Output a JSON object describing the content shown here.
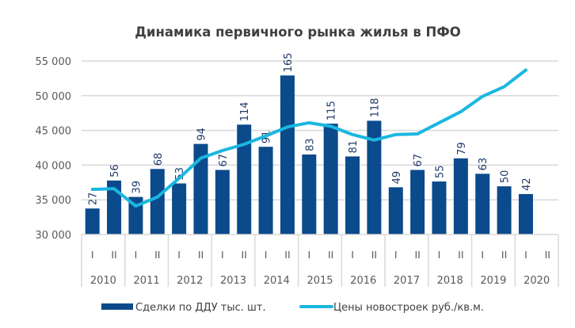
{
  "chart_data": {
    "type": "bar",
    "title": "Динамика первичного рынка жилья в ПФО",
    "xlabel": "",
    "ylabel": "",
    "ylim": [
      30000,
      55000
    ],
    "yticks": [
      "30 000",
      "35 000",
      "40 000",
      "45 000",
      "50 000",
      "55 000"
    ],
    "ytick_values": [
      30000,
      35000,
      40000,
      45000,
      50000,
      55000
    ],
    "secondary_ylim": [
      0,
      180
    ],
    "grid": true,
    "legend_position": "bottom",
    "years": [
      "2010",
      "2011",
      "2012",
      "2013",
      "2014",
      "2015",
      "2016",
      "2017",
      "2018",
      "2019",
      "2020"
    ],
    "half_labels": [
      "I",
      "II"
    ],
    "categories": [
      "2010 I",
      "2010 II",
      "2011 I",
      "2011 II",
      "2012 I",
      "2012 II",
      "2013 I",
      "2013 II",
      "2014 I",
      "2014 II",
      "2015 I",
      "2015 II",
      "2016 I",
      "2016 II",
      "2017 I",
      "2017 II",
      "2018 I",
      "2018 II",
      "2019 I",
      "2019 II",
      "2020 I",
      "2020 II"
    ],
    "series": [
      {
        "name": "Сделки по ДДУ тыс. шт.",
        "type": "bar",
        "axis": "secondary",
        "color": "#0b4a8b",
        "values": [
          27,
          56,
          39,
          68,
          53,
          94,
          67,
          114,
          91,
          165,
          83,
          115,
          81,
          118,
          49,
          67,
          55,
          79,
          63,
          50,
          42,
          null
        ],
        "labels": [
          "27",
          "56",
          "39",
          "68",
          "53",
          "94",
          "67",
          "114",
          "91",
          "165",
          "83",
          "115",
          "81",
          "118",
          "49",
          "67",
          "55",
          "79",
          "63",
          "50",
          "42",
          ""
        ]
      },
      {
        "name": "Цены новостроек руб./кв.м.",
        "type": "line",
        "axis": "primary",
        "color": "#1ab7e0",
        "values": [
          36500,
          36600,
          34100,
          35400,
          38100,
          41000,
          42100,
          43000,
          44200,
          45500,
          46100,
          45600,
          44400,
          43600,
          44400,
          44500,
          46100,
          47700,
          49900,
          51300,
          53700,
          null
        ]
      }
    ]
  },
  "colors": {
    "grid": "#d9d9d9",
    "axis_text": "#595959",
    "title": "#404040",
    "data_label": "#1f3a68"
  }
}
